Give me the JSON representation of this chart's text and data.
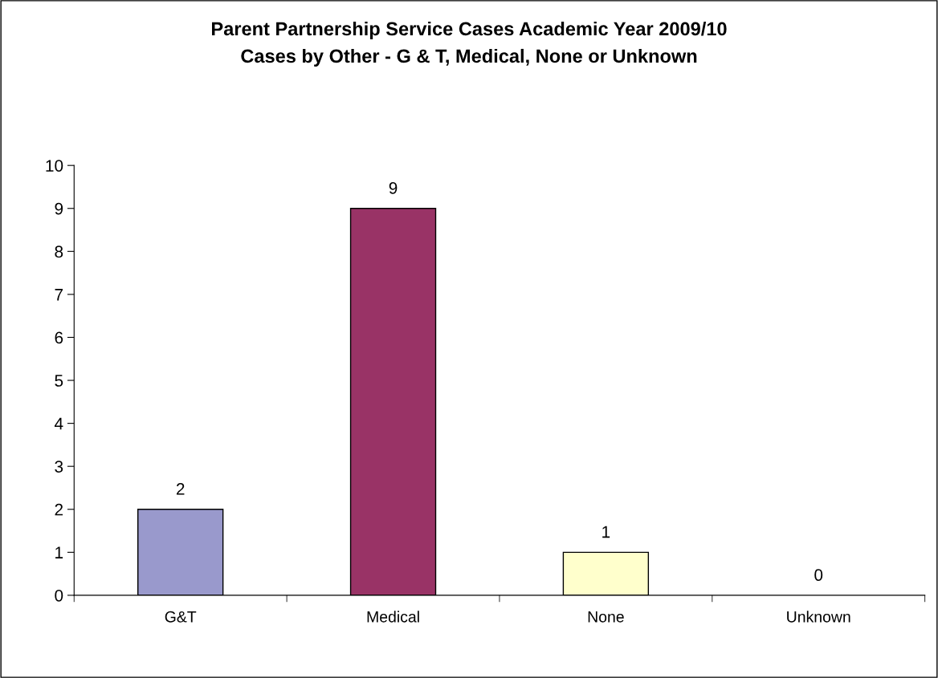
{
  "chart_data": {
    "type": "bar",
    "title": "Parent Partnership Service Cases Academic Year 2009/10\nCases by Other - G & T, Medical, None or Unknown",
    "categories": [
      "G&T",
      "Medical",
      "None",
      "Unknown"
    ],
    "values": [
      2,
      9,
      1,
      0
    ],
    "colors": [
      "#9999cc",
      "#993366",
      "#ffffcc",
      null
    ],
    "ylim": [
      0,
      10
    ],
    "yticks": [
      0,
      1,
      2,
      3,
      4,
      5,
      6,
      7,
      8,
      9,
      10
    ],
    "data_labels": true,
    "grid": false,
    "legend": false
  }
}
